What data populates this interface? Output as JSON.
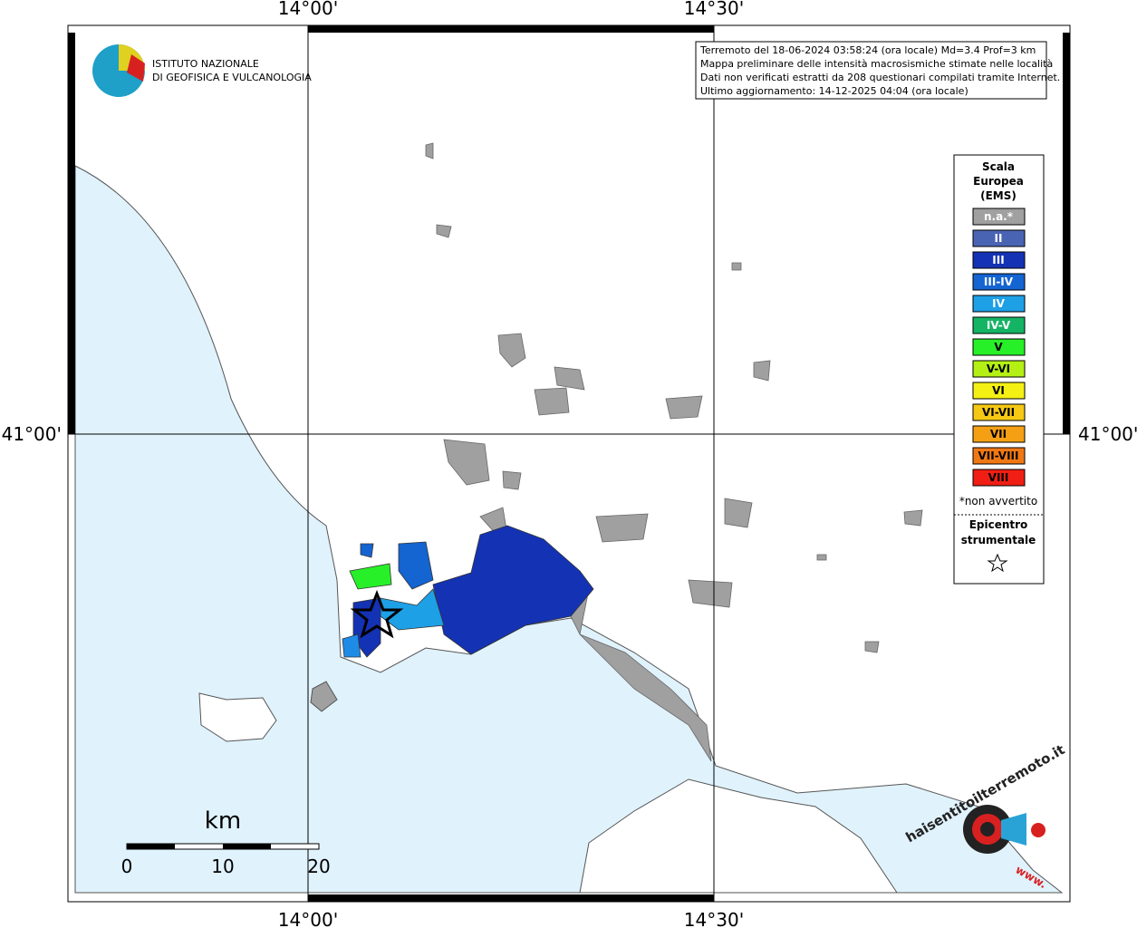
{
  "axes": {
    "top": [
      "14°00'",
      "14°30'"
    ],
    "bottom": [
      "14°00'",
      "14°30'"
    ],
    "left": [
      "41°00'"
    ],
    "right": [
      "41°00'"
    ]
  },
  "logo": {
    "line1": "ISTITUTO NAZIONALE",
    "line2": "DI GEOFISICA E VULCANOLOGIA"
  },
  "info": [
    "Terremoto del 18-06-2024 03:58:24 (ora locale) Md=3.4 Prof=3 km",
    "Mappa preliminare delle intensità macrosismiche stimate nelle località",
    "Dati non verificati estratti da 208 questionari compilati tramite Internet.",
    "Ultimo aggiornamento: 14-12-2025 04:04 (ora locale)"
  ],
  "legend": {
    "title": [
      "Scala",
      "Europea",
      "(EMS)"
    ],
    "items": [
      {
        "label": "n.a.*",
        "color": "#a0a0a0"
      },
      {
        "label": "II",
        "color": "#4a64b4"
      },
      {
        "label": "III",
        "color": "#1432b4"
      },
      {
        "label": "III-IV",
        "color": "#1464d2"
      },
      {
        "label": "IV",
        "color": "#1ea0e6"
      },
      {
        "label": "IV-V",
        "color": "#14b464"
      },
      {
        "label": "V",
        "color": "#28f028"
      },
      {
        "label": "V-VI",
        "color": "#b4f014"
      },
      {
        "label": "VI",
        "color": "#f5f014"
      },
      {
        "label": "VI-VII",
        "color": "#f5c814"
      },
      {
        "label": "VII",
        "color": "#f5a014"
      },
      {
        "label": "VII-VIII",
        "color": "#f07814"
      },
      {
        "label": "VIII",
        "color": "#f01e14"
      }
    ],
    "note": "*non avvertito",
    "epicentre": [
      "Epicentro",
      "strumentale"
    ]
  },
  "scale": {
    "unit": "km",
    "labels": [
      "0",
      "10",
      "20"
    ]
  },
  "badge": {
    "site": "haisentitoilterremoto.it",
    "prefix": "www."
  }
}
